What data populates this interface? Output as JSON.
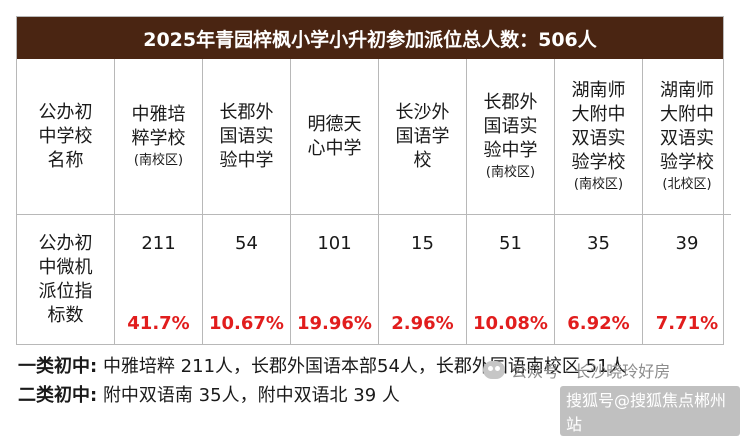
{
  "title": "2025年青园梓枫小学小升初参加派位总人数：506人",
  "header_label": [
    "公办初",
    "中学校",
    "名称"
  ],
  "row_label": [
    "公办初",
    "中微机",
    "派位指",
    "标数"
  ],
  "schools": [
    {
      "name_lines": [
        "中雅培",
        "粹学校"
      ],
      "sub": "(南校区)",
      "count": "211",
      "pct": "41.7%"
    },
    {
      "name_lines": [
        "长郡外",
        "国语实",
        "验中学"
      ],
      "sub": "",
      "count": "54",
      "pct": "10.67%"
    },
    {
      "name_lines": [
        "明德天",
        "心中学"
      ],
      "sub": "",
      "count": "101",
      "pct": "19.96%"
    },
    {
      "name_lines": [
        "长沙外",
        "国语学",
        "校"
      ],
      "sub": "",
      "count": "15",
      "pct": "2.96%"
    },
    {
      "name_lines": [
        "长郡外",
        "国语实",
        "验中学"
      ],
      "sub": "(南校区)",
      "count": "51",
      "pct": "10.08%"
    },
    {
      "name_lines": [
        "湖南师",
        "大附中",
        "双语实",
        "验学校"
      ],
      "sub": "(南校区)",
      "count": "35",
      "pct": "6.92%"
    },
    {
      "name_lines": [
        "湖南师",
        "大附中",
        "双语实",
        "验学校"
      ],
      "sub": "(北校区)",
      "count": "39",
      "pct": "7.71%"
    }
  ],
  "footer": {
    "line1_label": "一类初中:",
    "line1_text": "中雅培粹 211人，长郡外国语本部54人，长郡外国语南校区 51人",
    "line2_label": "二类初中:",
    "line2_text": "附中双语南 35人，附中双语北 39 人"
  },
  "watermark1": "公众号 · 长沙晓玲好房",
  "watermark2": "搜狐号@搜狐焦点郴州站",
  "colors": {
    "title_bg": "#4a2512",
    "pct": "#e11d1d"
  }
}
